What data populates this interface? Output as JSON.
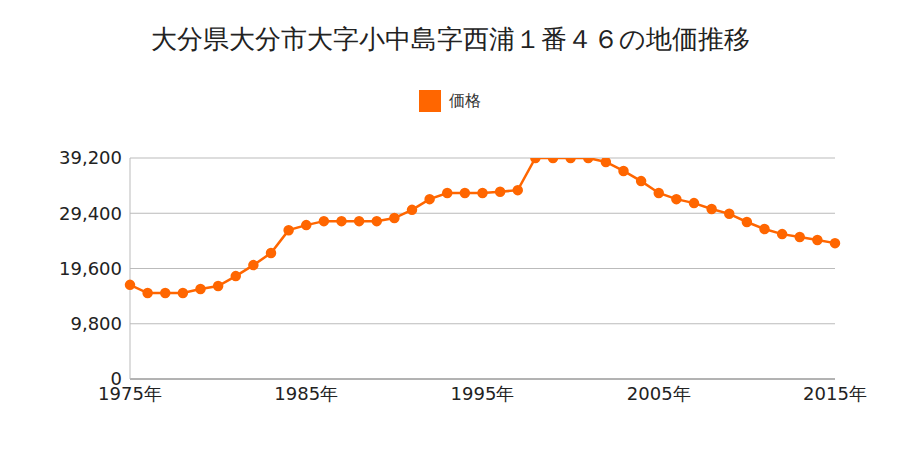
{
  "chart_data": {
    "type": "line",
    "title": "大分県大分市大字小中島字西浦１番４６の地価推移",
    "categories": [
      "1975年",
      null,
      null,
      null,
      null,
      null,
      null,
      null,
      null,
      null,
      "1985年",
      null,
      null,
      null,
      null,
      null,
      null,
      null,
      null,
      null,
      "1995年",
      null,
      null,
      null,
      null,
      null,
      null,
      null,
      null,
      null,
      "2005年",
      null,
      null,
      null,
      null,
      null,
      null,
      null,
      null,
      null,
      "2015年"
    ],
    "series": [
      {
        "name": "価格",
        "color": "#ff6600",
        "marker": "circle",
        "values": [
          16700,
          15250,
          15250,
          15250,
          15950,
          16500,
          18250,
          20200,
          22350,
          26400,
          27300,
          28000,
          28000,
          28000,
          28000,
          28550,
          30000,
          31900,
          33000,
          33000,
          33000,
          33200,
          33500,
          39200,
          39200,
          39200,
          39200,
          38500,
          36900,
          35100,
          33000,
          31900,
          31200,
          30150,
          29300,
          27850,
          26600,
          25700,
          25200,
          24650,
          24100
        ]
      }
    ],
    "ylim": [
      0,
      39200
    ],
    "yticks": [
      0,
      {
        "value": 9800,
        "label": "9,800"
      },
      {
        "value": 19600,
        "label": "19,600"
      },
      {
        "value": 29400,
        "label": "29,400"
      },
      {
        "value": 39200,
        "label": "39,200"
      }
    ],
    "grid": true,
    "legend": "top"
  }
}
